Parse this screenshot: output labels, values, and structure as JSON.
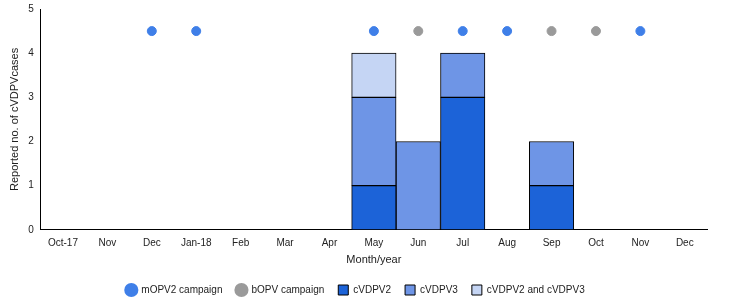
{
  "chart_data": {
    "type": "bar",
    "stacked": true,
    "legend": "bottom",
    "grid": false,
    "x_label": "Month/year",
    "y_label": "Reported no. of cVDPVcases",
    "categories": [
      "Oct-17",
      "Nov",
      "Dec",
      "Jan-18",
      "Feb",
      "Mar",
      "Apr",
      "May",
      "Jun",
      "Jul",
      "Aug",
      "Sep",
      "Oct",
      "Nov",
      "Dec"
    ],
    "ylim": [
      0,
      5
    ],
    "yticks": [
      0,
      1,
      2,
      3,
      4,
      5
    ],
    "series": [
      {
        "name": "cVDPV2",
        "type": "bar",
        "color": "#1c63d8",
        "values": [
          0,
          0,
          0,
          0,
          0,
          0,
          0,
          1,
          0,
          3,
          0,
          1,
          0,
          0,
          0
        ]
      },
      {
        "name": "cVDPV3",
        "type": "bar",
        "color": "#6e95e6",
        "values": [
          0,
          0,
          0,
          0,
          0,
          0,
          0,
          2,
          2,
          1,
          0,
          1,
          0,
          0,
          0
        ]
      },
      {
        "name": "cVDPV2 and cVDPV3",
        "type": "bar",
        "color": "#c5d5f4",
        "values": [
          0,
          0,
          0,
          0,
          0,
          0,
          0,
          1,
          0,
          0,
          0,
          0,
          0,
          0,
          0
        ]
      },
      {
        "name": "mOPV2 campaign",
        "type": "scatter",
        "color": "#3f7fe8",
        "marker": "circle",
        "line_style": "none",
        "values": [
          null,
          null,
          4.5,
          4.5,
          null,
          null,
          null,
          4.5,
          null,
          4.5,
          4.5,
          null,
          null,
          4.5,
          null
        ]
      },
      {
        "name": "bOPV campaign",
        "type": "scatter",
        "color": "#9a9a9a",
        "marker": "circle",
        "line_style": "none",
        "values": [
          null,
          null,
          null,
          null,
          null,
          null,
          null,
          null,
          4.5,
          null,
          null,
          4.5,
          4.5,
          null,
          null
        ]
      }
    ]
  }
}
